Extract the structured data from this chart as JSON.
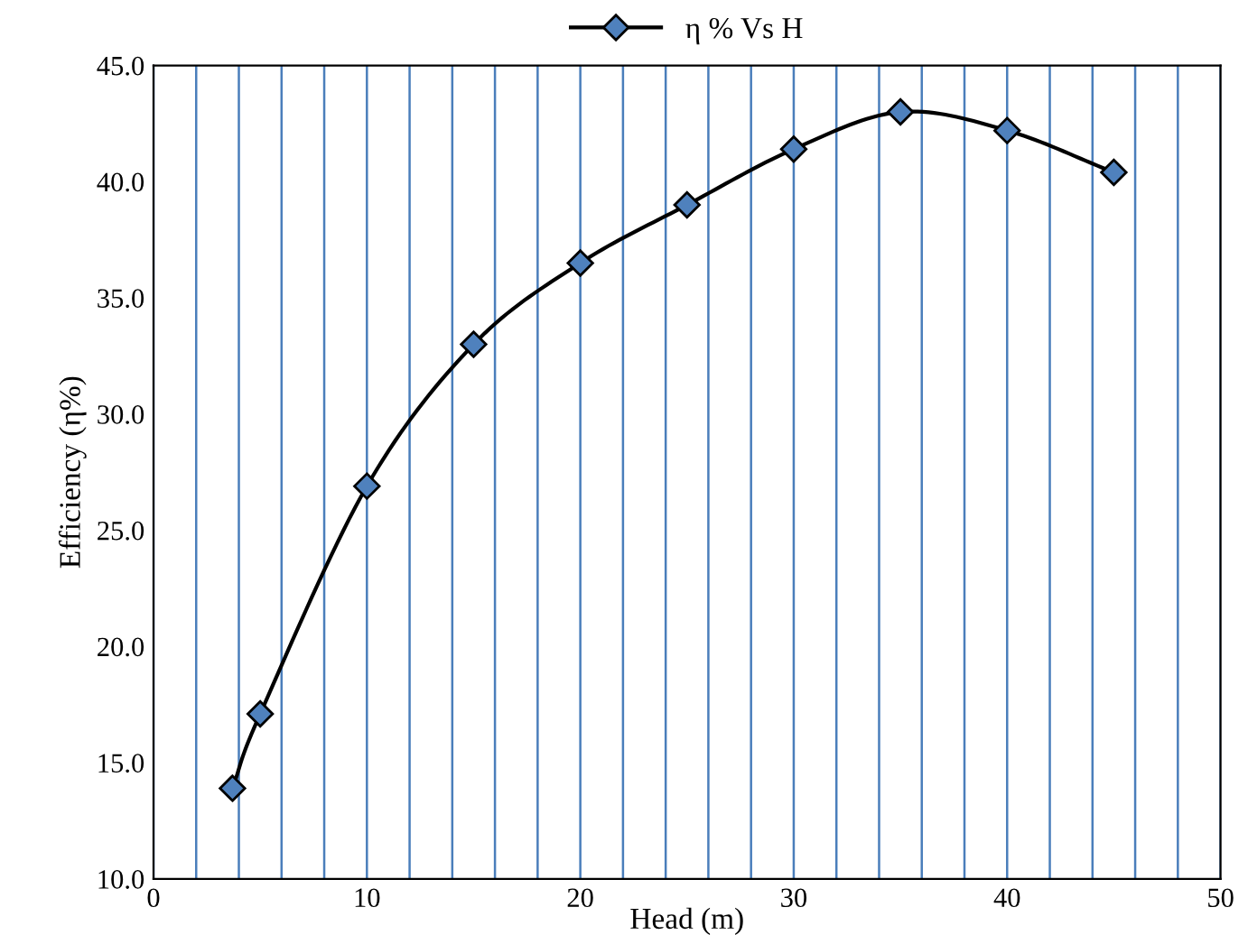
{
  "chart_data": {
    "type": "line",
    "xlabel": "Head (m)",
    "ylabel": "Efficiency (η%)",
    "series": [
      {
        "name": "η % Vs H",
        "color": "#000000",
        "x": [
          3.7,
          5,
          10,
          15,
          20,
          25,
          30,
          35,
          40,
          45
        ],
        "values": [
          13.9,
          17.1,
          26.9,
          33.0,
          36.5,
          39.0,
          41.4,
          43.0,
          42.2,
          40.4
        ]
      }
    ],
    "marker": "diamond",
    "legend": "top",
    "grid": "x",
    "xlim": [
      0,
      50
    ],
    "ylim": [
      10,
      45
    ],
    "xticks": [
      0,
      {
        "value": 2,
        "label": null
      },
      {
        "value": 4,
        "label": null
      },
      {
        "value": 6,
        "label": null
      },
      {
        "value": 8,
        "label": null
      },
      10,
      {
        "value": 12,
        "label": null
      },
      {
        "value": 14,
        "label": null
      },
      {
        "value": 16,
        "label": null
      },
      {
        "value": 18,
        "label": null
      },
      20,
      {
        "value": 22,
        "label": null
      },
      {
        "value": 24,
        "label": null
      },
      {
        "value": 26,
        "label": null
      },
      {
        "value": 28,
        "label": null
      },
      30,
      {
        "value": 32,
        "label": null
      },
      {
        "value": 34,
        "label": null
      },
      {
        "value": 36,
        "label": null
      },
      {
        "value": 38,
        "label": null
      },
      40,
      {
        "value": 42,
        "label": null
      },
      {
        "value": 44,
        "label": null
      },
      {
        "value": 46,
        "label": null
      },
      {
        "value": 48,
        "label": null
      },
      50
    ],
    "yticks": [
      {
        "value": 10,
        "label": "10.0"
      },
      {
        "value": 15,
        "label": "15.0"
      },
      {
        "value": 20,
        "label": "20.0"
      },
      {
        "value": 25,
        "label": "25.0"
      },
      {
        "value": 30,
        "label": "30.0"
      },
      {
        "value": 35,
        "label": "35.0"
      },
      {
        "value": 40,
        "label": "40.0"
      },
      {
        "value": 45,
        "label": "45.0"
      }
    ]
  }
}
